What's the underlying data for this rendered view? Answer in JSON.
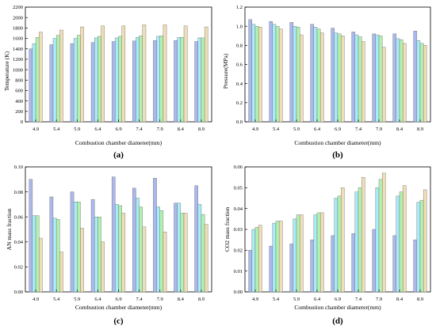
{
  "colors": {
    "series": [
      "#aab8ee",
      "#a9ecf8",
      "#b2f2b0",
      "#f0dfb6"
    ],
    "border": "#6a6a6a",
    "axis": "#000000"
  },
  "chart_data": [
    {
      "id": "a",
      "panel_label": "(a)",
      "type": "bar",
      "categories": [
        "4.9",
        "5.4",
        "5.9",
        "6.4",
        "6.9",
        "7.4",
        "7.9",
        "8.4",
        "8.9"
      ],
      "series": [
        {
          "values": [
            1400,
            1480,
            1500,
            1520,
            1540,
            1550,
            1560,
            1560,
            1540
          ]
        },
        {
          "values": [
            1500,
            1600,
            1600,
            1610,
            1610,
            1620,
            1640,
            1620,
            1610
          ]
        },
        {
          "values": [
            1620,
            1660,
            1660,
            1640,
            1640,
            1650,
            1650,
            1620,
            1610
          ]
        },
        {
          "values": [
            1720,
            1760,
            1820,
            1840,
            1840,
            1860,
            1860,
            1840,
            1820
          ]
        }
      ],
      "title": "",
      "xlabel": "Combustion chamber diameter(mm)",
      "ylabel": "Temperature (K)",
      "ylim": [
        0,
        2200
      ],
      "yticks": [
        "0",
        "200",
        "400",
        "600",
        "800",
        "1000",
        "1200",
        "1400",
        "1600",
        "1800",
        "2000",
        "2200"
      ],
      "ytick_values": [
        0,
        200,
        400,
        600,
        800,
        1000,
        1200,
        1400,
        1600,
        1800,
        2000,
        2200
      ],
      "grid": false
    },
    {
      "id": "b",
      "panel_label": "(b)",
      "type": "bar",
      "categories": [
        "4.9",
        "5.4",
        "5.9",
        "6.4",
        "6.9",
        "7.4",
        "7.9",
        "8.4",
        "8.9"
      ],
      "series": [
        {
          "values": [
            1.07,
            1.05,
            1.04,
            1.02,
            0.98,
            0.94,
            0.92,
            0.92,
            0.95
          ]
        },
        {
          "values": [
            1.02,
            1.02,
            1.0,
            0.99,
            0.93,
            0.91,
            0.91,
            0.87,
            0.85
          ]
        },
        {
          "values": [
            1.0,
            1.0,
            0.99,
            0.97,
            0.92,
            0.89,
            0.9,
            0.86,
            0.82
          ]
        },
        {
          "values": [
            0.99,
            0.97,
            0.91,
            0.93,
            0.9,
            0.84,
            0.78,
            0.82,
            0.8
          ]
        }
      ],
      "title": "",
      "xlabel": "Combustion chamber diameter(mm)",
      "ylabel": "Pressure(MPa)",
      "ylim": [
        0,
        1.2
      ],
      "yticks": [
        "0.0",
        "0.2",
        "0.4",
        "0.6",
        "0.8",
        "1.0",
        "1.2"
      ],
      "ytick_values": [
        0,
        0.2,
        0.4,
        0.6,
        0.8,
        1.0,
        1.2
      ],
      "grid": false
    },
    {
      "id": "c",
      "panel_label": "(c)",
      "type": "bar",
      "categories": [
        "4.9",
        "5.4",
        "5.9",
        "6.4",
        "6.9",
        "7.4",
        "7.9",
        "8.4",
        "8.9"
      ],
      "series": [
        {
          "values": [
            0.09,
            0.076,
            0.08,
            0.074,
            0.092,
            0.083,
            0.091,
            0.071,
            0.085
          ]
        },
        {
          "values": [
            0.061,
            0.059,
            0.072,
            0.06,
            0.07,
            0.075,
            0.068,
            0.071,
            0.07
          ]
        },
        {
          "values": [
            0.061,
            0.058,
            0.072,
            0.06,
            0.069,
            0.068,
            0.065,
            0.063,
            0.062
          ]
        },
        {
          "values": [
            0.043,
            0.032,
            0.051,
            0.04,
            0.063,
            0.052,
            0.048,
            0.063,
            0.054
          ]
        }
      ],
      "title": "",
      "xlabel": "Combustion chamber diameter(mm)",
      "ylabel": "AN mass fraction",
      "ylim": [
        0,
        0.1
      ],
      "yticks": [
        "0.00",
        "0.02",
        "0.04",
        "0.06",
        "0.08",
        "0.10"
      ],
      "ytick_values": [
        0,
        0.02,
        0.04,
        0.06,
        0.08,
        0.1
      ],
      "grid": false
    },
    {
      "id": "d",
      "panel_label": "(d)",
      "type": "bar",
      "categories": [
        "4.9",
        "5.4",
        "5.9",
        "6.4",
        "6.9",
        "7.4",
        "7.9",
        "8.4",
        "8.9"
      ],
      "series": [
        {
          "values": [
            0.02,
            0.022,
            0.023,
            0.025,
            0.027,
            0.028,
            0.03,
            0.027,
            0.025
          ]
        },
        {
          "values": [
            0.03,
            0.033,
            0.035,
            0.037,
            0.045,
            0.048,
            0.05,
            0.046,
            0.043
          ]
        },
        {
          "values": [
            0.031,
            0.034,
            0.037,
            0.038,
            0.046,
            0.05,
            0.054,
            0.048,
            0.044
          ]
        },
        {
          "values": [
            0.032,
            0.034,
            0.037,
            0.038,
            0.05,
            0.055,
            0.057,
            0.051,
            0.049
          ]
        }
      ],
      "title": "",
      "xlabel": "Combustion chamber diameter(mm)",
      "ylabel": "CO2 mass fraction",
      "ylim": [
        0,
        0.06
      ],
      "yticks": [
        "0.00",
        "0.01",
        "0.02",
        "0.03",
        "0.04",
        "0.05",
        "0.06"
      ],
      "ytick_values": [
        0,
        0.01,
        0.02,
        0.03,
        0.04,
        0.05,
        0.06
      ],
      "grid": false
    }
  ]
}
